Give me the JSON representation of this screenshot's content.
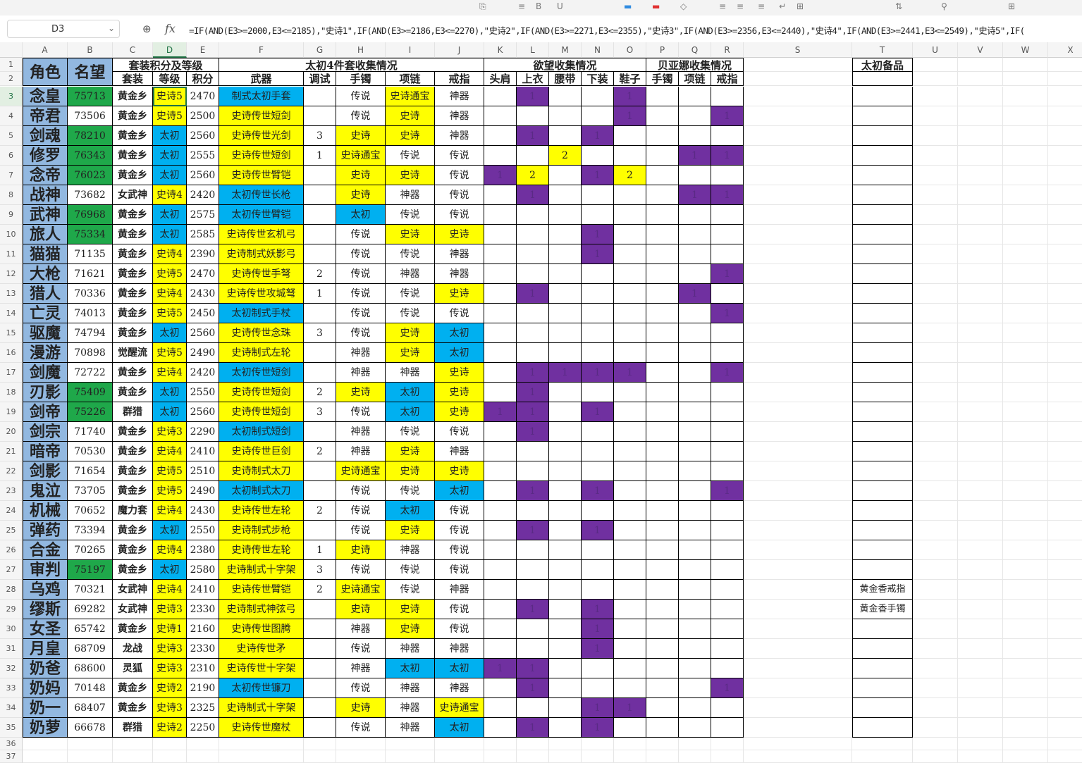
{
  "toolbar": {
    "icons": [
      "paste-icon",
      "format-icon",
      "bold-icon",
      "underline-icon",
      "fill-color-icon",
      "font-color-icon",
      "clear-icon",
      "align-left-icon",
      "align-center-icon",
      "align-right-icon",
      "wrap-icon",
      "merge-icon",
      "sort-icon",
      "filter-icon",
      "worksheet-icon"
    ]
  },
  "formula_bar": {
    "name_box": "D3",
    "formula": "=IF(AND(E3>=2000,E3<=2185),\"史诗1\",IF(AND(E3>=2186,E3<=2270),\"史诗2\",IF(AND(E3>=2271,E3<=2355),\"史诗3\",IF(AND(E3>=2356,E3<=2440),\"史诗4\",IF(AND(E3>=2441,E3<=2549),\"史诗5\",IF("
  },
  "columns": [
    "A",
    "B",
    "C",
    "D",
    "E",
    "F",
    "G",
    "H",
    "I",
    "J",
    "K",
    "L",
    "M",
    "N",
    "O",
    "P",
    "Q",
    "R",
    "S",
    "T",
    "U",
    "V",
    "W",
    "X"
  ],
  "headers": {
    "role": "角色",
    "fame": "名望",
    "suit_group": "套装积分及等级",
    "suit": "套装",
    "grade": "等级",
    "score": "积分",
    "taichu_group": "太初4件套收集情况",
    "weapon": "武器",
    "tune": "调试",
    "bracelet": "手镯",
    "necklace": "项链",
    "ring": "戒指",
    "desire_group": "欲望收集情况",
    "shoulder": "头肩",
    "top": "上衣",
    "belt": "腰带",
    "pants": "下装",
    "shoes": "鞋子",
    "bella_group": "贝亚娜收集情况",
    "b_bracelet": "手镯",
    "b_necklace": "项链",
    "b_ring": "戒指",
    "spare": "太初备品"
  },
  "colors": {
    "green": "#1fa84a",
    "lightblue": "#92b8e0",
    "yellow": "#ffff00",
    "blue": "#00b0f0",
    "purple": "#7030a0"
  },
  "rows": [
    {
      "n": "3",
      "role": "念皇",
      "fame": "75713",
      "fg": 1,
      "suit": "黄金乡",
      "grade": "史诗5",
      "score": "2470",
      "weapon": "制式太初手套",
      "wc": "blue",
      "tune": "",
      "br": "传说",
      "brc": "",
      "ne": "史诗通宝",
      "nec": "yellow",
      "ri": "神器",
      "ric": "",
      "K": "",
      "L": "1",
      "M": "",
      "N": "",
      "O": "1",
      "P": "",
      "Q": "",
      "R": "",
      "spare": ""
    },
    {
      "n": "4",
      "role": "帝君",
      "fame": "73506",
      "fg": 0,
      "suit": "黄金乡",
      "grade": "史诗5",
      "score": "2500",
      "weapon": "史诗传世短剑",
      "wc": "yellow",
      "tune": "",
      "br": "传说",
      "brc": "",
      "ne": "史诗",
      "nec": "yellow",
      "ri": "神器",
      "ric": "",
      "K": "",
      "L": "",
      "M": "",
      "N": "",
      "O": "1",
      "P": "",
      "Q": "",
      "R": "1",
      "spare": ""
    },
    {
      "n": "5",
      "role": "剑魂",
      "fame": "78210",
      "fg": 1,
      "suit": "黄金乡",
      "grade": "太初",
      "score": "2560",
      "weapon": "史诗传世光剑",
      "wc": "yellow",
      "tune": "3",
      "br": "史诗",
      "brc": "yellow",
      "ne": "史诗",
      "nec": "yellow",
      "ri": "神器",
      "ric": "",
      "K": "",
      "L": "1",
      "M": "",
      "N": "1",
      "O": "",
      "P": "",
      "Q": "",
      "R": "",
      "spare": ""
    },
    {
      "n": "6",
      "role": "修罗",
      "fame": "76343",
      "fg": 1,
      "suit": "黄金乡",
      "grade": "太初",
      "score": "2555",
      "weapon": "史诗传世短剑",
      "wc": "yellow",
      "tune": "1",
      "br": "史诗通宝",
      "brc": "yellow",
      "ne": "传说",
      "nec": "",
      "ri": "传说",
      "ric": "",
      "K": "",
      "L": "",
      "M": "2y",
      "N": "",
      "O": "",
      "P": "",
      "Q": "1",
      "R": "1",
      "spare": ""
    },
    {
      "n": "7",
      "role": "念帝",
      "fame": "76023",
      "fg": 1,
      "suit": "黄金乡",
      "grade": "太初",
      "score": "2560",
      "weapon": "史诗传世臂铠",
      "wc": "yellow",
      "tune": "",
      "br": "史诗",
      "brc": "yellow",
      "ne": "史诗",
      "nec": "yellow",
      "ri": "传说",
      "ric": "",
      "K": "1",
      "L": "2y",
      "M": "",
      "N": "1",
      "O": "2y",
      "P": "",
      "Q": "",
      "R": "",
      "spare": ""
    },
    {
      "n": "8",
      "role": "战神",
      "fame": "73682",
      "fg": 0,
      "suit": "女武神",
      "grade": "史诗4",
      "score": "2420",
      "weapon": "太初传世长枪",
      "wc": "blue",
      "tune": "",
      "br": "史诗",
      "brc": "yellow",
      "ne": "神器",
      "nec": "",
      "ri": "传说",
      "ric": "",
      "K": "",
      "L": "1",
      "M": "",
      "N": "",
      "O": "",
      "P": "",
      "Q": "1",
      "R": "1",
      "spare": ""
    },
    {
      "n": "9",
      "role": "武神",
      "fame": "76968",
      "fg": 1,
      "suit": "黄金乡",
      "grade": "太初",
      "score": "2575",
      "weapon": "太初传世臂铠",
      "wc": "blue",
      "tune": "",
      "br": "太初",
      "brc": "blue",
      "ne": "传说",
      "nec": "",
      "ri": "传说",
      "ric": "",
      "K": "",
      "L": "",
      "M": "",
      "N": "",
      "O": "",
      "P": "",
      "Q": "",
      "R": "",
      "spare": ""
    },
    {
      "n": "10",
      "role": "旅人",
      "fame": "75334",
      "fg": 1,
      "suit": "黄金乡",
      "grade": "太初",
      "score": "2585",
      "weapon": "史诗传世玄机弓",
      "wc": "yellow",
      "tune": "",
      "br": "传说",
      "brc": "",
      "ne": "史诗",
      "nec": "yellow",
      "ri": "史诗",
      "ric": "yellow",
      "K": "",
      "L": "",
      "M": "",
      "N": "1",
      "O": "",
      "P": "",
      "Q": "",
      "R": "",
      "spare": ""
    },
    {
      "n": "11",
      "role": "猫猫",
      "fame": "71135",
      "fg": 0,
      "suit": "黄金乡",
      "grade": "史诗4",
      "score": "2390",
      "weapon": "史诗制式妖影弓",
      "wc": "yellow",
      "tune": "",
      "br": "传说",
      "brc": "",
      "ne": "传说",
      "nec": "",
      "ri": "神器",
      "ric": "",
      "K": "",
      "L": "",
      "M": "",
      "N": "1",
      "O": "",
      "P": "",
      "Q": "",
      "R": "",
      "spare": ""
    },
    {
      "n": "12",
      "role": "大枪",
      "fame": "71621",
      "fg": 0,
      "suit": "黄金乡",
      "grade": "史诗5",
      "score": "2470",
      "weapon": "史诗传世手弩",
      "wc": "yellow",
      "tune": "2",
      "br": "传说",
      "brc": "",
      "ne": "神器",
      "nec": "",
      "ri": "神器",
      "ric": "",
      "K": "",
      "L": "",
      "M": "",
      "N": "",
      "O": "",
      "P": "",
      "Q": "",
      "R": "1",
      "spare": ""
    },
    {
      "n": "13",
      "role": "猎人",
      "fame": "70336",
      "fg": 0,
      "suit": "黄金乡",
      "grade": "史诗4",
      "score": "2430",
      "weapon": "史诗传世攻城弩",
      "wc": "yellow",
      "tune": "1",
      "br": "传说",
      "brc": "",
      "ne": "传说",
      "nec": "",
      "ri": "史诗",
      "ric": "yellow",
      "K": "",
      "L": "1",
      "M": "",
      "N": "",
      "O": "",
      "P": "",
      "Q": "1",
      "R": "",
      "spare": ""
    },
    {
      "n": "14",
      "role": "亡灵",
      "fame": "74013",
      "fg": 0,
      "suit": "黄金乡",
      "grade": "史诗5",
      "score": "2450",
      "weapon": "太初制式手杖",
      "wc": "blue",
      "tune": "",
      "br": "传说",
      "brc": "",
      "ne": "传说",
      "nec": "",
      "ri": "传说",
      "ric": "",
      "K": "",
      "L": "",
      "M": "",
      "N": "",
      "O": "",
      "P": "",
      "Q": "",
      "R": "1",
      "spare": ""
    },
    {
      "n": "15",
      "role": "驱魔",
      "fame": "74794",
      "fg": 0,
      "suit": "黄金乡",
      "grade": "太初",
      "score": "2560",
      "weapon": "史诗传世念珠",
      "wc": "yellow",
      "tune": "3",
      "br": "传说",
      "brc": "",
      "ne": "史诗",
      "nec": "yellow",
      "ri": "太初",
      "ric": "blue",
      "K": "",
      "L": "",
      "M": "",
      "N": "",
      "O": "",
      "P": "",
      "Q": "",
      "R": "",
      "spare": ""
    },
    {
      "n": "16",
      "role": "漫游",
      "fame": "70898",
      "fg": 0,
      "suit": "觉醒流",
      "grade": "史诗5",
      "score": "2490",
      "weapon": "史诗制式左轮",
      "wc": "yellow",
      "tune": "",
      "br": "神器",
      "brc": "",
      "ne": "史诗",
      "nec": "yellow",
      "ri": "太初",
      "ric": "blue",
      "K": "",
      "L": "",
      "M": "",
      "N": "",
      "O": "",
      "P": "",
      "Q": "",
      "R": "",
      "spare": ""
    },
    {
      "n": "17",
      "role": "剑魔",
      "fame": "72722",
      "fg": 0,
      "suit": "黄金乡",
      "grade": "史诗4",
      "score": "2420",
      "weapon": "太初传世短剑",
      "wc": "blue",
      "tune": "",
      "br": "神器",
      "brc": "",
      "ne": "神器",
      "nec": "",
      "ri": "史诗",
      "ric": "yellow",
      "K": "",
      "L": "1",
      "M": "1",
      "N": "1",
      "O": "1",
      "P": "",
      "Q": "",
      "R": "1",
      "spare": ""
    },
    {
      "n": "18",
      "role": "刃影",
      "fame": "75409",
      "fg": 1,
      "suit": "黄金乡",
      "grade": "太初",
      "score": "2550",
      "weapon": "史诗传世短剑",
      "wc": "yellow",
      "tune": "2",
      "br": "史诗",
      "brc": "yellow",
      "ne": "太初",
      "nec": "blue",
      "ri": "史诗",
      "ric": "yellow",
      "K": "",
      "L": "1",
      "M": "",
      "N": "",
      "O": "",
      "P": "",
      "Q": "",
      "R": "",
      "spare": ""
    },
    {
      "n": "19",
      "role": "剑帝",
      "fame": "75226",
      "fg": 1,
      "suit": "群猎",
      "grade": "太初",
      "score": "2560",
      "weapon": "史诗传世短剑",
      "wc": "yellow",
      "tune": "3",
      "br": "传说",
      "brc": "",
      "ne": "太初",
      "nec": "blue",
      "ri": "史诗",
      "ric": "yellow",
      "K": "1",
      "L": "1",
      "M": "",
      "N": "1",
      "O": "",
      "P": "",
      "Q": "",
      "R": "",
      "spare": ""
    },
    {
      "n": "20",
      "role": "剑宗",
      "fame": "71740",
      "fg": 0,
      "suit": "黄金乡",
      "grade": "史诗3",
      "score": "2290",
      "weapon": "太初制式短剑",
      "wc": "blue",
      "tune": "",
      "br": "神器",
      "brc": "",
      "ne": "传说",
      "nec": "",
      "ri": "传说",
      "ric": "",
      "K": "",
      "L": "1",
      "M": "",
      "N": "",
      "O": "",
      "P": "",
      "Q": "",
      "R": "",
      "spare": ""
    },
    {
      "n": "21",
      "role": "暗帝",
      "fame": "70530",
      "fg": 0,
      "suit": "黄金乡",
      "grade": "史诗4",
      "score": "2410",
      "weapon": "史诗传世巨剑",
      "wc": "yellow",
      "tune": "2",
      "br": "神器",
      "brc": "",
      "ne": "史诗",
      "nec": "yellow",
      "ri": "神器",
      "ric": "",
      "K": "",
      "L": "",
      "M": "",
      "N": "",
      "O": "",
      "P": "",
      "Q": "",
      "R": "",
      "spare": ""
    },
    {
      "n": "22",
      "role": "剑影",
      "fame": "71654",
      "fg": 0,
      "suit": "黄金乡",
      "grade": "史诗5",
      "score": "2510",
      "weapon": "史诗制式太刀",
      "wc": "yellow",
      "tune": "",
      "br": "史诗通宝",
      "brc": "yellow",
      "ne": "史诗",
      "nec": "yellow",
      "ri": "史诗",
      "ric": "yellow",
      "K": "",
      "L": "",
      "M": "",
      "N": "",
      "O": "",
      "P": "",
      "Q": "",
      "R": "",
      "spare": ""
    },
    {
      "n": "23",
      "role": "鬼泣",
      "fame": "73705",
      "fg": 0,
      "suit": "黄金乡",
      "grade": "史诗5",
      "score": "2490",
      "weapon": "太初制式太刀",
      "wc": "blue",
      "tune": "",
      "br": "传说",
      "brc": "",
      "ne": "传说",
      "nec": "",
      "ri": "太初",
      "ric": "blue",
      "K": "",
      "L": "1",
      "M": "",
      "N": "1",
      "O": "",
      "P": "",
      "Q": "",
      "R": "1",
      "spare": ""
    },
    {
      "n": "24",
      "role": "机械",
      "fame": "70652",
      "fg": 0,
      "suit": "魔力套",
      "grade": "史诗4",
      "score": "2430",
      "weapon": "史诗传世左轮",
      "wc": "yellow",
      "tune": "2",
      "br": "传说",
      "brc": "",
      "ne": "太初",
      "nec": "blue",
      "ri": "传说",
      "ric": "",
      "K": "",
      "L": "",
      "M": "",
      "N": "",
      "O": "",
      "P": "",
      "Q": "",
      "R": "",
      "spare": ""
    },
    {
      "n": "25",
      "role": "弹药",
      "fame": "73394",
      "fg": 0,
      "suit": "黄金乡",
      "grade": "太初",
      "score": "2550",
      "weapon": "史诗制式步枪",
      "wc": "yellow",
      "tune": "",
      "br": "传说",
      "brc": "",
      "ne": "史诗",
      "nec": "yellow",
      "ri": "传说",
      "ric": "",
      "K": "",
      "L": "1",
      "M": "",
      "N": "1",
      "O": "",
      "P": "",
      "Q": "",
      "R": "",
      "spare": ""
    },
    {
      "n": "26",
      "role": "合金",
      "fame": "70265",
      "fg": 0,
      "suit": "黄金乡",
      "grade": "史诗4",
      "score": "2380",
      "weapon": "史诗传世左轮",
      "wc": "yellow",
      "tune": "1",
      "br": "史诗",
      "brc": "yellow",
      "ne": "神器",
      "nec": "",
      "ri": "传说",
      "ric": "",
      "K": "",
      "L": "",
      "M": "",
      "N": "",
      "O": "",
      "P": "",
      "Q": "",
      "R": "",
      "spare": ""
    },
    {
      "n": "27",
      "role": "审判",
      "fame": "75197",
      "fg": 1,
      "suit": "黄金乡",
      "grade": "太初",
      "score": "2580",
      "weapon": "史诗制式十字架",
      "wc": "yellow",
      "tune": "3",
      "br": "传说",
      "brc": "",
      "ne": "传说",
      "nec": "",
      "ri": "传说",
      "ric": "",
      "K": "",
      "L": "",
      "M": "",
      "N": "",
      "O": "",
      "P": "",
      "Q": "",
      "R": "",
      "spare": ""
    },
    {
      "n": "28",
      "role": "乌鸡",
      "fame": "70321",
      "fg": 0,
      "suit": "女武神",
      "grade": "史诗4",
      "score": "2410",
      "weapon": "史诗传世臂铠",
      "wc": "yellow",
      "tune": "2",
      "br": "史诗通宝",
      "brc": "yellow",
      "ne": "传说",
      "nec": "",
      "ri": "神器",
      "ric": "",
      "K": "",
      "L": "",
      "M": "",
      "N": "",
      "O": "",
      "P": "",
      "Q": "",
      "R": "",
      "spare": "黄金香戒指"
    },
    {
      "n": "29",
      "role": "缪斯",
      "fame": "69282",
      "fg": 0,
      "suit": "女武神",
      "grade": "史诗3",
      "score": "2330",
      "weapon": "史诗制式神弦弓",
      "wc": "yellow",
      "tune": "",
      "br": "史诗",
      "brc": "yellow",
      "ne": "史诗",
      "nec": "yellow",
      "ri": "传说",
      "ric": "",
      "K": "",
      "L": "1",
      "M": "",
      "N": "1",
      "O": "",
      "P": "",
      "Q": "",
      "R": "",
      "spare": "黄金香手镯"
    },
    {
      "n": "30",
      "role": "女圣",
      "fame": "65742",
      "fg": 0,
      "suit": "黄金乡",
      "grade": "史诗1",
      "score": "2160",
      "weapon": "史诗传世图腾",
      "wc": "yellow",
      "tune": "",
      "br": "神器",
      "brc": "",
      "ne": "史诗",
      "nec": "yellow",
      "ri": "传说",
      "ric": "",
      "K": "",
      "L": "",
      "M": "",
      "N": "1",
      "O": "",
      "P": "",
      "Q": "",
      "R": "",
      "spare": ""
    },
    {
      "n": "31",
      "role": "月皇",
      "fame": "68709",
      "fg": 0,
      "suit": "龙战",
      "grade": "史诗3",
      "score": "2330",
      "weapon": "史诗传世矛",
      "wc": "yellow",
      "tune": "",
      "br": "传说",
      "brc": "",
      "ne": "神器",
      "nec": "",
      "ri": "神器",
      "ric": "",
      "K": "",
      "L": "",
      "M": "",
      "N": "1",
      "O": "",
      "P": "",
      "Q": "",
      "R": "",
      "spare": ""
    },
    {
      "n": "32",
      "role": "奶爸",
      "fame": "68600",
      "fg": 0,
      "suit": "灵狐",
      "grade": "史诗3",
      "score": "2310",
      "weapon": "史诗传世十字架",
      "wc": "yellow",
      "tune": "",
      "br": "神器",
      "brc": "",
      "ne": "太初",
      "nec": "blue",
      "ri": "太初",
      "ric": "blue",
      "K": "1",
      "L": "1",
      "M": "",
      "N": "",
      "O": "",
      "P": "",
      "Q": "",
      "R": "",
      "spare": ""
    },
    {
      "n": "33",
      "role": "奶妈",
      "fame": "70148",
      "fg": 0,
      "suit": "黄金乡",
      "grade": "史诗2",
      "score": "2190",
      "weapon": "太初传世镰刀",
      "wc": "blue",
      "tune": "",
      "br": "传说",
      "brc": "",
      "ne": "神器",
      "nec": "",
      "ri": "神器",
      "ric": "",
      "K": "",
      "L": "1",
      "M": "",
      "N": "",
      "O": "",
      "P": "",
      "Q": "",
      "R": "1",
      "spare": ""
    },
    {
      "n": "34",
      "role": "奶一",
      "fame": "68407",
      "fg": 0,
      "suit": "黄金乡",
      "grade": "史诗3",
      "score": "2325",
      "weapon": "史诗制式十字架",
      "wc": "yellow",
      "tune": "",
      "br": "史诗",
      "brc": "yellow",
      "ne": "神器",
      "nec": "",
      "ri": "史诗通宝",
      "ric": "yellow",
      "K": "",
      "L": "",
      "M": "",
      "N": "1",
      "O": "1",
      "P": "",
      "Q": "",
      "R": "",
      "spare": ""
    },
    {
      "n": "35",
      "role": "奶萝",
      "fame": "66678",
      "fg": 0,
      "suit": "群猎",
      "grade": "史诗2",
      "score": "2250",
      "weapon": "史诗传世魔杖",
      "wc": "yellow",
      "tune": "",
      "br": "传说",
      "brc": "",
      "ne": "神器",
      "nec": "",
      "ri": "太初",
      "ric": "blue",
      "K": "",
      "L": "1",
      "M": "",
      "N": "1",
      "O": "",
      "P": "",
      "Q": "",
      "R": "",
      "spare": ""
    }
  ],
  "extra_rows": [
    "36",
    "37"
  ]
}
